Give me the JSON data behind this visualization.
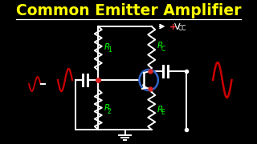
{
  "title": "Common Emitter Amplifier",
  "title_color": "#FFFF00",
  "bg_color": "#000000",
  "circuit_color": "#FFFFFF",
  "label_color": "#00FF00",
  "sine_color_left": "#CC0000",
  "sine_color_right": "#CC0000",
  "transistor_circle_color": "#3366CC",
  "dot_color": "#DD2222",
  "vcc_plus_color": "#FF3333",
  "rc_label": "R",
  "rc_sub": "C",
  "r1_label": "R",
  "r1_sub": "1",
  "r2_label": "R",
  "r2_sub": "2",
  "re_label": "R",
  "re_sub": "E"
}
